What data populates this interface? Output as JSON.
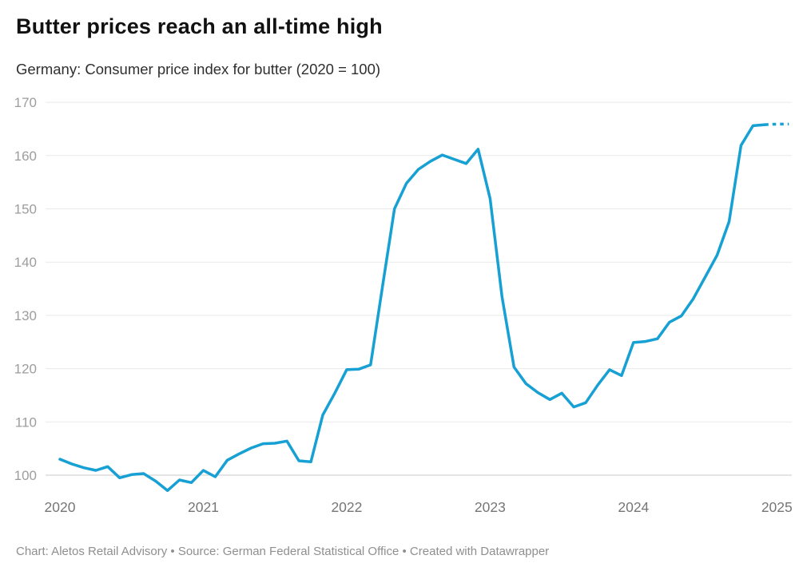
{
  "header": {
    "title": "Butter prices reach an all-time high",
    "subtitle": "Germany: Consumer price index for butter (2020 = 100)"
  },
  "footer": {
    "text": "Chart: Aletos Retail Advisory • Source: German Federal Statistical Office • Created with Datawrapper"
  },
  "chart_data": {
    "type": "line",
    "title": "Butter prices reach an all-time high",
    "subtitle": "Germany: Consumer price index for butter (2020 = 100)",
    "legend": "none",
    "grid": "horizontal",
    "x_axis": {
      "ticks": [
        "2020",
        "2021",
        "2022",
        "2023",
        "2024",
        "2025"
      ],
      "unit": "month"
    },
    "y_axis": {
      "ticks": [
        100,
        110,
        120,
        130,
        140,
        150,
        160,
        170
      ],
      "baseline": 100,
      "range_shown": [
        96,
        170
      ]
    },
    "series": [
      {
        "name": "Consumer price index for butter, Germany (2020 = 100)",
        "color": "#16a0d3",
        "solid_until_index": 59,
        "tail_style": "dotted (final two points drawn as dashes)",
        "x": [
          "2020-01",
          "2020-02",
          "2020-03",
          "2020-04",
          "2020-05",
          "2020-06",
          "2020-07",
          "2020-08",
          "2020-09",
          "2020-10",
          "2020-11",
          "2020-12",
          "2021-01",
          "2021-02",
          "2021-03",
          "2021-04",
          "2021-05",
          "2021-06",
          "2021-07",
          "2021-08",
          "2021-09",
          "2021-10",
          "2021-11",
          "2021-12",
          "2022-01",
          "2022-02",
          "2022-03",
          "2022-04",
          "2022-05",
          "2022-06",
          "2022-07",
          "2022-08",
          "2022-09",
          "2022-10",
          "2022-11",
          "2022-12",
          "2023-01",
          "2023-02",
          "2023-03",
          "2023-04",
          "2023-05",
          "2023-06",
          "2023-07",
          "2023-08",
          "2023-09",
          "2023-10",
          "2023-11",
          "2023-12",
          "2024-01",
          "2024-02",
          "2024-03",
          "2024-04",
          "2024-05",
          "2024-06",
          "2024-07",
          "2024-08",
          "2024-09",
          "2024-10",
          "2024-11",
          "2024-12",
          "2025-01",
          "2025-02"
        ],
        "values": [
          103.0,
          102.1,
          101.4,
          100.9,
          101.6,
          99.5,
          100.1,
          100.3,
          98.9,
          97.1,
          99.1,
          98.6,
          100.9,
          99.7,
          102.8,
          104.0,
          105.1,
          105.9,
          106.0,
          106.4,
          102.7,
          102.5,
          111.3,
          115.4,
          119.8,
          119.9,
          120.7,
          135.5,
          150.0,
          154.8,
          157.4,
          158.9,
          160.1,
          159.3,
          158.5,
          161.2,
          151.9,
          133.5,
          120.3,
          117.2,
          115.5,
          114.2,
          115.4,
          112.8,
          113.6,
          116.9,
          119.8,
          118.7,
          124.9,
          125.1,
          125.6,
          128.7,
          129.9,
          133.1,
          137.2,
          141.3,
          147.6,
          161.9,
          165.6,
          165.8,
          165.9,
          165.9
        ]
      }
    ]
  }
}
